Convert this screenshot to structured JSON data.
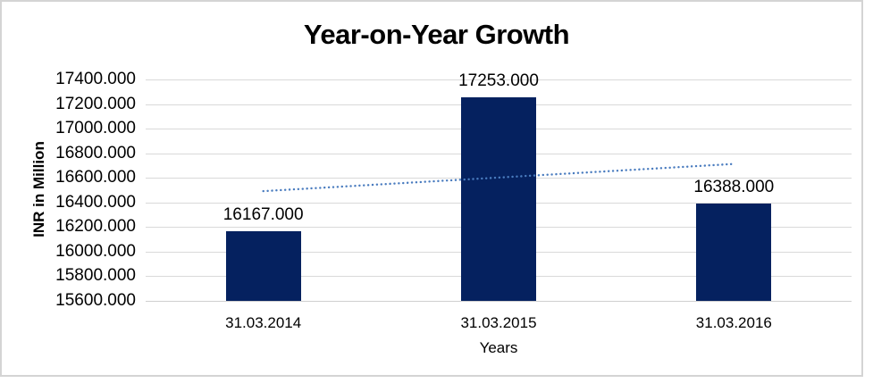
{
  "chart_data": {
    "type": "bar",
    "title": "Year-on-Year Growth",
    "xlabel": "Years",
    "ylabel": "INR in Million",
    "categories": [
      "31.03.2014",
      "31.03.2015",
      "31.03.2016"
    ],
    "series": [
      {
        "name": "INR in Million",
        "values": [
          16167,
          17253,
          16388
        ]
      }
    ],
    "data_labels": [
      "16167.000",
      "17253.000",
      "16388.000"
    ],
    "ylim": [
      15600,
      17400
    ],
    "ytick_step": 200,
    "ytick_labels_top_to_bottom": [
      "17400.000",
      "17200.000",
      "17000.000",
      "16800.000",
      "16600.000",
      "16400.000",
      "16200.000",
      "16000.000",
      "15800.000",
      "15600.000"
    ],
    "grid": true,
    "legend": "none",
    "trendline": {
      "type": "linear",
      "style": "dotted"
    },
    "colors": {
      "bar": "#05215f",
      "trendline": "#4a7cbf",
      "gridline": "#d9d9d9",
      "axis_line": "#cfcfcf",
      "frame_border": "#d4d4d4",
      "text": "#000000",
      "background": "#ffffff"
    }
  }
}
